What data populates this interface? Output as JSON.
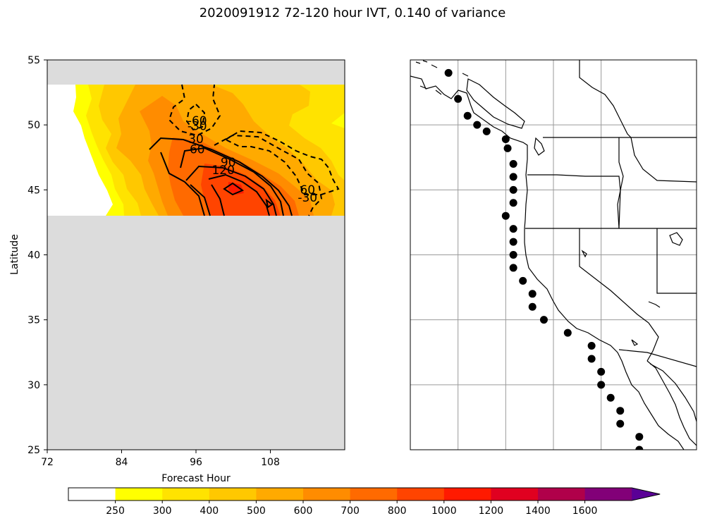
{
  "figure_title": "2020091912 72-120 hour IVT, 0.140 of variance",
  "chart_data": [
    {
      "type": "heatmap",
      "title": "",
      "xlabel": "Forecast Hour",
      "ylabel": "Latitude",
      "xlim": [
        72,
        120
      ],
      "ylim": [
        25,
        55
      ],
      "xticks": [
        72,
        84,
        96,
        108
      ],
      "yticks": [
        25,
        30,
        35,
        40,
        45,
        50,
        55
      ],
      "grid": false,
      "data_lat_range": [
        43,
        53
      ],
      "missing_color": "#dcdcdc",
      "levels": [
        0,
        250,
        300,
        400,
        500,
        600,
        700,
        800,
        1000,
        1200,
        1400,
        1600
      ],
      "level_colors": [
        "#ffffff",
        "#ffff00",
        "#ffe300",
        "#ffc800",
        "#ffaa00",
        "#ff8c00",
        "#ff6a00",
        "#ff4400",
        "#ff1a00",
        "#e00020",
        "#b0004a",
        "#820078"
      ],
      "contour_labels": [
        {
          "text": "-60",
          "x": 96.2,
          "y": 50.0
        },
        {
          "text": "-30",
          "x": 96.2,
          "y": 49.6
        },
        {
          "text": "30",
          "x": 96.0,
          "y": 48.6
        },
        {
          "text": "60",
          "x": 96.2,
          "y": 47.8
        },
        {
          "text": "90",
          "x": 101.2,
          "y": 46.8
        },
        {
          "text": "120",
          "x": 100.4,
          "y": 46.2
        },
        {
          "text": "60",
          "x": 114.0,
          "y": 44.7
        },
        {
          "text": "-30",
          "x": 114.0,
          "y": 44.1
        }
      ]
    },
    {
      "type": "map",
      "region": "US West Coast",
      "lon_range": [
        -135,
        -105
      ],
      "lat_range": [
        25,
        55
      ],
      "markers": [
        [
          -131.0,
          54.0
        ],
        [
          -130.0,
          52.0
        ],
        [
          -129.0,
          50.7
        ],
        [
          -128.0,
          50.0
        ],
        [
          -127.0,
          49.5
        ],
        [
          -125.0,
          48.9
        ],
        [
          -124.8,
          48.2
        ],
        [
          -124.2,
          47.0
        ],
        [
          -124.2,
          46.0
        ],
        [
          -124.2,
          45.0
        ],
        [
          -124.2,
          44.0
        ],
        [
          -125.0,
          43.0
        ],
        [
          -124.2,
          42.0
        ],
        [
          -124.2,
          41.0
        ],
        [
          -124.2,
          40.0
        ],
        [
          -124.2,
          39.0
        ],
        [
          -123.2,
          38.0
        ],
        [
          -122.2,
          37.0
        ],
        [
          -122.2,
          36.0
        ],
        [
          -121.0,
          35.0
        ],
        [
          -118.5,
          34.0
        ],
        [
          -116.0,
          33.0
        ],
        [
          -116.0,
          32.0
        ],
        [
          -115.0,
          31.0
        ],
        [
          -115.0,
          30.0
        ],
        [
          -114.0,
          29.0
        ],
        [
          -113.0,
          28.0
        ],
        [
          -113.0,
          27.0
        ],
        [
          -111.0,
          26.0
        ],
        [
          -111.0,
          25.0
        ]
      ],
      "gridlines_lon": [
        -130,
        -125,
        -120,
        -115
      ],
      "gridlines_lat": [
        30,
        35,
        40,
        45,
        50
      ]
    }
  ],
  "colorbar": {
    "tick_labels": [
      "250",
      "300",
      "400",
      "500",
      "600",
      "700",
      "800",
      "1000",
      "1200",
      "1400",
      "1600"
    ],
    "colors": [
      "#ffffff",
      "#ffff00",
      "#ffe300",
      "#ffc800",
      "#ffaa00",
      "#ff8c00",
      "#ff6a00",
      "#ff4400",
      "#ff1a00",
      "#e00020",
      "#b0004a",
      "#820078",
      "#5a0096"
    ]
  }
}
